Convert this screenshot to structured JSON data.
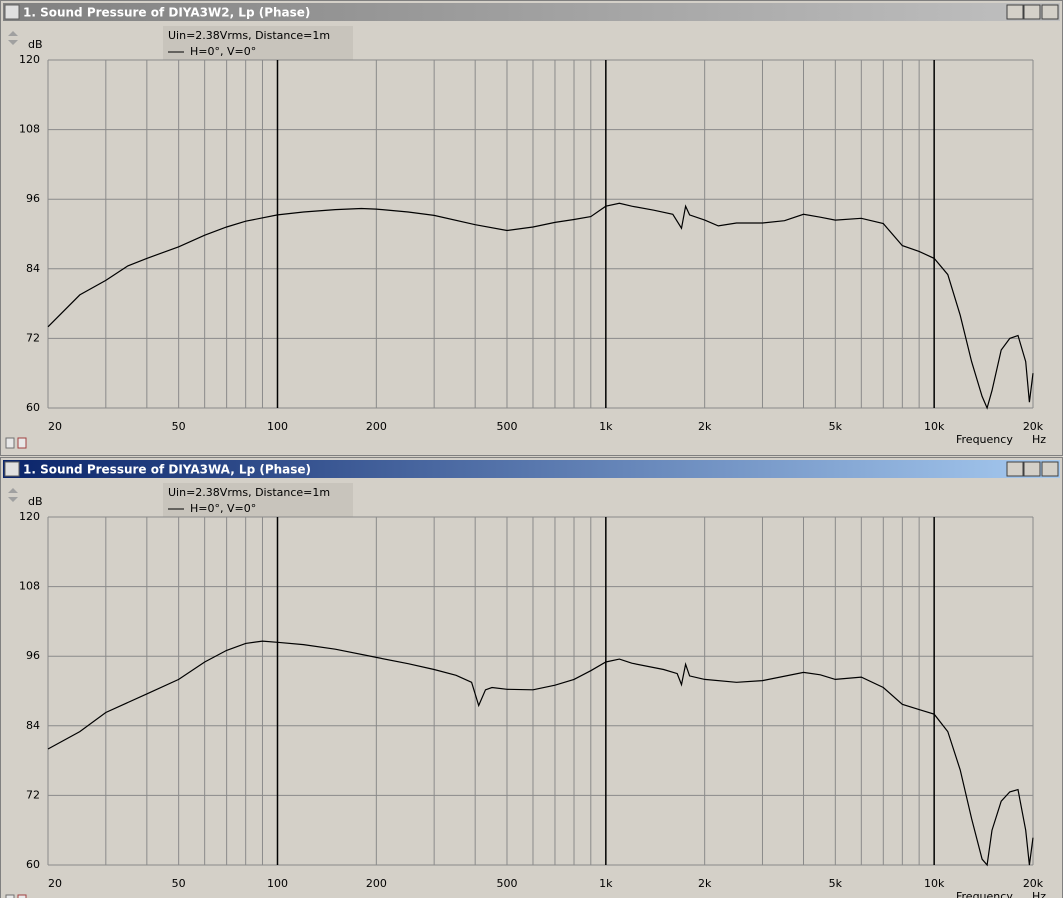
{
  "chart_data": [
    {
      "type": "line",
      "title": "1. Sound Pressure of DIYA3W2, Lp (Phase)",
      "subtitle": "Uin=2.38Vrms, Distance=1m",
      "y_label": "dB",
      "x_label": "Frequency",
      "x_unit": "Hz",
      "log_x": true,
      "grid": true,
      "active": false,
      "xlim": [
        20,
        20000
      ],
      "ylim": [
        60,
        120
      ],
      "yticks": [
        60,
        72,
        84,
        96,
        108,
        120
      ],
      "xticks": [
        20,
        50,
        100,
        200,
        500,
        {
          "value": 1000,
          "label": "1k"
        },
        {
          "value": 2000,
          "label": "2k"
        },
        {
          "value": 5000,
          "label": "5k"
        },
        {
          "value": 10000,
          "label": "10k"
        },
        {
          "value": 20000,
          "label": "20k"
        }
      ],
      "xgrid": [
        30,
        40,
        60,
        70,
        80,
        90,
        300,
        400,
        600,
        700,
        800,
        900,
        3000,
        4000,
        6000,
        7000,
        8000,
        9000
      ],
      "x": [
        20,
        25,
        30,
        35,
        40,
        50,
        60,
        70,
        80,
        100,
        120,
        150,
        180,
        200,
        250,
        300,
        400,
        500,
        600,
        700,
        800,
        900,
        1000,
        1100,
        1200,
        1400,
        1600,
        1700,
        1750,
        1800,
        2000,
        2200,
        2500,
        3000,
        3500,
        4000,
        4500,
        5000,
        6000,
        7000,
        8000,
        9000,
        10000,
        11000,
        12000,
        13000,
        14000,
        14500,
        15000,
        16000,
        17000,
        18000,
        19000,
        19500,
        20000
      ],
      "series": [
        {
          "name": "H=0°, V=0°",
          "color": "#000000",
          "values": [
            74,
            79.5,
            82,
            84.5,
            85.8,
            87.8,
            89.8,
            91.2,
            92.2,
            93.3,
            93.8,
            94.2,
            94.4,
            94.3,
            93.8,
            93.2,
            91.6,
            90.6,
            91.2,
            92,
            92.5,
            93,
            94.8,
            95.3,
            94.8,
            94.1,
            93.4,
            91,
            94.8,
            93.3,
            92.4,
            91.4,
            91.9,
            91.9,
            92.3,
            93.4,
            92.9,
            92.4,
            92.7,
            91.8,
            88,
            87,
            85.8,
            83,
            76,
            68,
            62,
            60,
            63,
            70,
            72,
            72.5,
            68,
            61,
            66
          ]
        }
      ]
    },
    {
      "type": "line",
      "title": "1. Sound Pressure of DIYA3WA, Lp (Phase)",
      "subtitle": "Uin=2.38Vrms, Distance=1m",
      "y_label": "dB",
      "x_label": "Frequency",
      "x_unit": "Hz",
      "log_x": true,
      "grid": true,
      "active": true,
      "xlim": [
        20,
        20000
      ],
      "ylim": [
        60,
        120
      ],
      "yticks": [
        60,
        72,
        84,
        96,
        108,
        120
      ],
      "xticks": [
        20,
        50,
        100,
        200,
        500,
        {
          "value": 1000,
          "label": "1k"
        },
        {
          "value": 2000,
          "label": "2k"
        },
        {
          "value": 5000,
          "label": "5k"
        },
        {
          "value": 10000,
          "label": "10k"
        },
        {
          "value": 20000,
          "label": "20k"
        }
      ],
      "xgrid": [
        30,
        40,
        60,
        70,
        80,
        90,
        300,
        400,
        600,
        700,
        800,
        900,
        3000,
        4000,
        6000,
        7000,
        8000,
        9000
      ],
      "x": [
        20,
        25,
        30,
        40,
        50,
        60,
        70,
        80,
        90,
        100,
        120,
        150,
        200,
        250,
        300,
        350,
        390,
        410,
        430,
        450,
        500,
        600,
        700,
        800,
        900,
        1000,
        1100,
        1200,
        1500,
        1650,
        1700,
        1750,
        1800,
        2000,
        2500,
        3000,
        4000,
        4500,
        5000,
        6000,
        7000,
        8000,
        9000,
        10000,
        11000,
        12000,
        13000,
        14000,
        14500,
        15000,
        16000,
        17000,
        18000,
        19000,
        19500,
        20000
      ],
      "series": [
        {
          "name": "H=0°, V=0°",
          "color": "#000000",
          "values": [
            80,
            83,
            86.3,
            89.5,
            92,
            95,
            97,
            98.2,
            98.6,
            98.4,
            98,
            97.2,
            95.8,
            94.7,
            93.7,
            92.7,
            91.5,
            87.5,
            90.2,
            90.6,
            90.3,
            90.2,
            91,
            92,
            93.5,
            95,
            95.5,
            94.8,
            93.7,
            93,
            91.1,
            94.6,
            92.6,
            92,
            91.5,
            91.8,
            93.2,
            92.8,
            92,
            92.4,
            90.6,
            87.7,
            86.8,
            86,
            83,
            76.4,
            68,
            61,
            60,
            66,
            71,
            72.6,
            73,
            66,
            60,
            64.7
          ]
        }
      ]
    }
  ]
}
